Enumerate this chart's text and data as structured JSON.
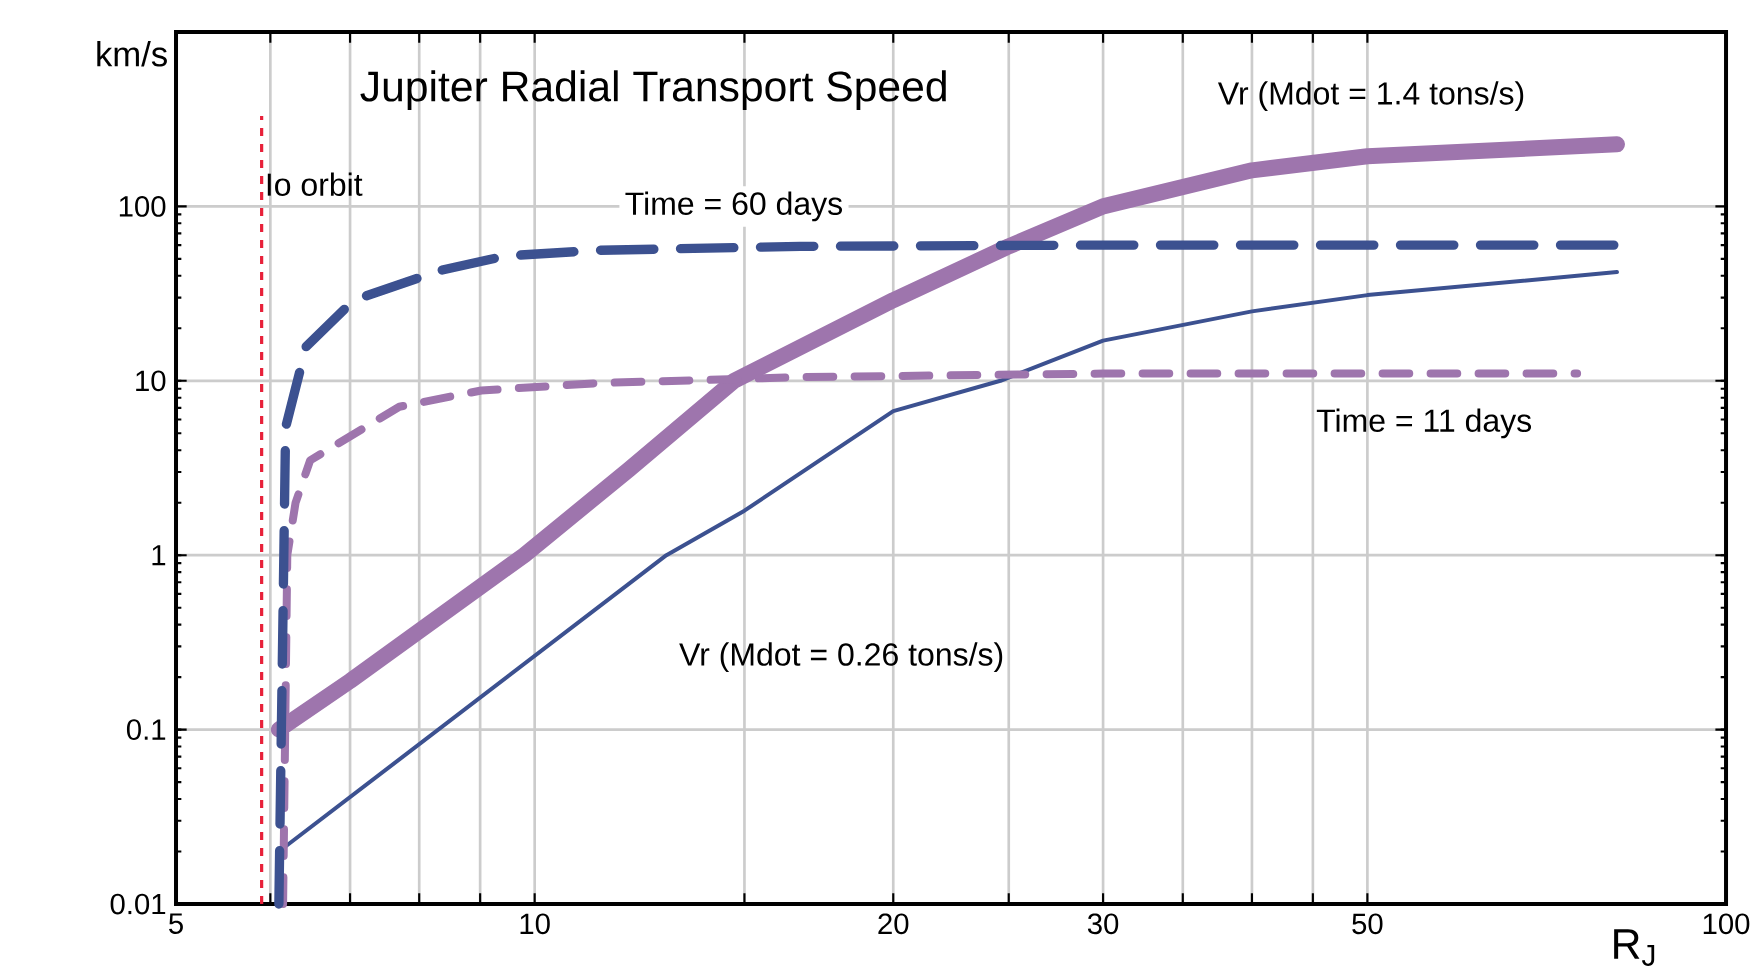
{
  "chart_data": {
    "type": "line",
    "title": "Jupiter Radial Transport Speed",
    "xlabel": "R$_{J}$",
    "ylabel": "km/s",
    "log": "xy",
    "grid": true,
    "xlim": [
      5,
      100
    ],
    "ylim": [
      0.01,
      1000
    ],
    "xticks": [
      5,
      {
        "value": 6,
        "label": null
      },
      {
        "value": 7,
        "label": null
      },
      {
        "value": 8,
        "label": null
      },
      {
        "value": 9,
        "label": null
      },
      10,
      {
        "value": 15,
        "label": null
      },
      20,
      {
        "value": 25,
        "label": null
      },
      30,
      {
        "value": 35,
        "label": null
      },
      {
        "value": 40,
        "label": null
      },
      {
        "value": 45,
        "label": null
      },
      50,
      100
    ],
    "yticks": [
      0.01,
      0.1,
      1,
      10,
      100
    ],
    "ref_lines": [
      {
        "axis": "x",
        "value": 5.9,
        "label": "Io orbit",
        "color": "#e8213a",
        "line_style": "dashed"
      }
    ],
    "series": [
      {
        "name": "Vr (Mdot = 1.4 tons/s)",
        "color": "#9e75ad",
        "line_style": "solid",
        "x": [
          6.1,
          7,
          9.8,
          12,
          14.7,
          20,
          25,
          30,
          40,
          50,
          81
        ],
        "values": [
          0.1,
          0.19,
          1,
          3.1,
          10,
          29,
          59,
          100,
          161,
          194,
          227
        ]
      },
      {
        "name": "Time = 60 days",
        "color": "#3c5190",
        "line_style": "dashed",
        "x": [
          6.1,
          6.15,
          6.18,
          6.43,
          7.05,
          8.34,
          9.46,
          11.3,
          16.7,
          30,
          81
        ],
        "values": [
          0.01,
          0.5,
          5.4,
          15.7,
          29,
          43,
          52,
          56,
          59,
          60,
          60
        ]
      },
      {
        "name": "Time = 11 days",
        "color": "#9e75ad",
        "line_style": "dashed",
        "x": [
          6.15,
          6.2,
          6.3,
          6.48,
          7.7,
          9.02,
          11.3,
          16.7,
          30,
          75
        ],
        "values": [
          0.01,
          1,
          2,
          3.5,
          7.1,
          8.8,
          9.7,
          10.5,
          11,
          11
        ]
      },
      {
        "name": "Vr (Mdot = 0.26 tons/s)",
        "color": "#3c5190",
        "line_style": "solid",
        "x": [
          6.1,
          12.9,
          15,
          20,
          24.6,
          30,
          40,
          50,
          81
        ],
        "values": [
          0.02,
          1,
          1.8,
          6.7,
          10,
          17,
          25,
          31,
          42
        ]
      }
    ]
  }
}
